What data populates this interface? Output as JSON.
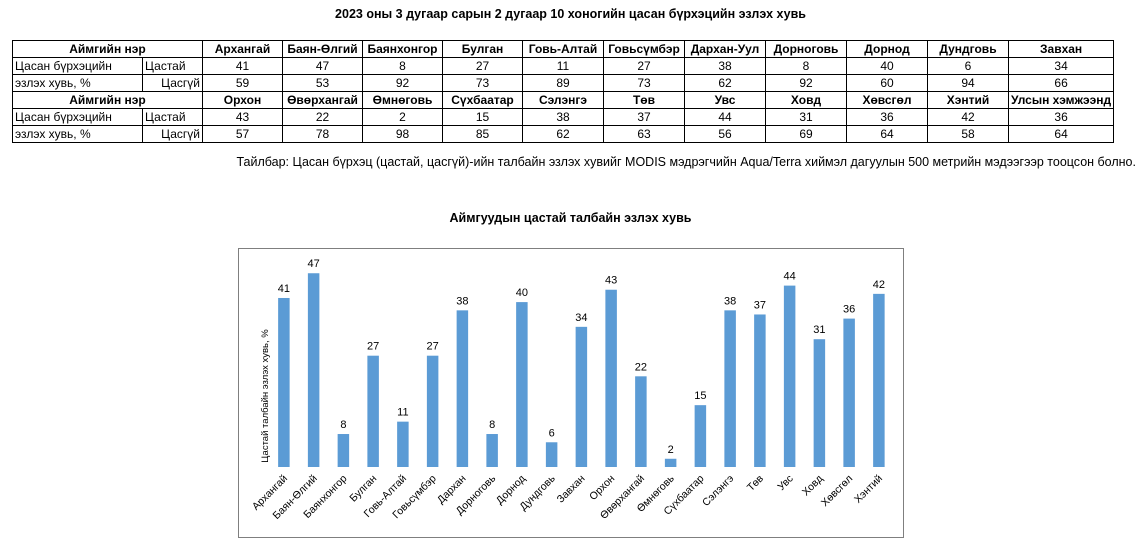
{
  "title": "2023 оны 3 дугаар сарын 2 дугаар 10 хоногийн цасан бүрхэцийн эзлэх хувь",
  "table": {
    "header_label": "Аймгийн нэр",
    "row_label": "Цасан бүрхэцийн эзлэх хувь, %",
    "row_label_line1": "Цасан бүрхэцийн",
    "row_label_line2": "эзлэх хувь, %",
    "sub_with": "Цастай",
    "sub_without": "Цасгүй",
    "blocks": [
      {
        "names": [
          "Архангай",
          "Баян-Өлгий",
          "Баянхонгор",
          "Булган",
          "Говь-Алтай",
          "Говьсүмбэр",
          "Дархан-Уул",
          "Дорноговь",
          "Дорнод",
          "Дундговь",
          "Завхан"
        ],
        "with_snow": [
          "41",
          "47",
          "8",
          "27",
          "11",
          "27",
          "38",
          "8",
          "40",
          "6",
          "34"
        ],
        "without_snow": [
          "59",
          "53",
          "92",
          "73",
          "89",
          "73",
          "62",
          "92",
          "60",
          "94",
          "66"
        ]
      },
      {
        "names": [
          "Орхон",
          "Өвөрхангай",
          "Өмнөговь",
          "Сүхбаатар",
          "Сэлэнгэ",
          "Төв",
          "Увс",
          "Ховд",
          "Хөвсгөл",
          "Хэнтий",
          "Улсын хэмжээнд"
        ],
        "with_snow": [
          "43",
          "22",
          "2",
          "15",
          "38",
          "37",
          "44",
          "31",
          "36",
          "42",
          "36"
        ],
        "without_snow": [
          "57",
          "78",
          "98",
          "85",
          "62",
          "63",
          "56",
          "69",
          "64",
          "58",
          "64"
        ]
      }
    ]
  },
  "note": "Тайлбар: Цасан бүрхэц (цастай, цасгүй)-ийн талбайн эзлэх хувийг MODIS мэдрэгчийн Aqua/Terra хиймэл дагуулын 500 метрийн мэдээгээр тооцсон болно.",
  "chart_data": {
    "type": "bar",
    "title": "Аймгуудын цастай талбайн эзлэх хувь",
    "xlabel": "",
    "ylabel": "Цастай талбайн эзлэх хувь, %",
    "ylim": [
      0,
      50
    ],
    "grid": false,
    "legend": "none",
    "bar_color": "#5b9bd5",
    "categories": [
      "Архангай",
      "Баян-Өлгий",
      "Баянхонгор",
      "Булган",
      "Говь-Алтай",
      "Говьсүмбэр",
      "Дархан",
      "Дорноговь",
      "Дорнод",
      "Дундговь",
      "Завхан",
      "Орхон",
      "Өвөрхангай",
      "Өмнөговь",
      "Сүхбаатар",
      "Сэлэнгэ",
      "Төв",
      "Увс",
      "Ховд",
      "Хөвсгөл",
      "Хэнтий"
    ],
    "values": [
      41,
      47,
      8,
      27,
      11,
      27,
      38,
      8,
      40,
      6,
      34,
      43,
      22,
      2,
      15,
      38,
      37,
      44,
      31,
      36,
      42
    ]
  }
}
